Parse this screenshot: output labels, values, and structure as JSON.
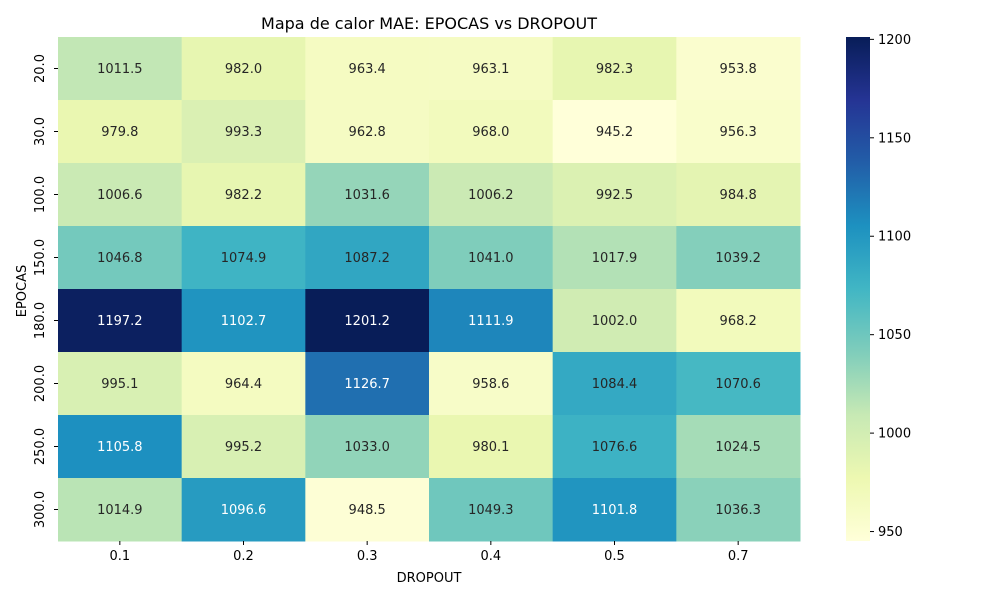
{
  "chart_data": {
    "type": "heatmap",
    "title": "Mapa de calor MAE: EPOCAS vs DROPOUT",
    "xlabel": "DROPOUT",
    "ylabel": "EPOCAS",
    "x_categories": [
      "0.1",
      "0.2",
      "0.3",
      "0.4",
      "0.5",
      "0.7"
    ],
    "y_categories": [
      "20.0",
      "30.0",
      "100.0",
      "150.0",
      "180.0",
      "200.0",
      "250.0",
      "300.0"
    ],
    "values": [
      [
        1011.5,
        982.0,
        963.4,
        963.1,
        982.3,
        953.8
      ],
      [
        979.8,
        993.3,
        962.8,
        968.0,
        945.2,
        956.3
      ],
      [
        1006.6,
        982.2,
        1031.6,
        1006.2,
        992.5,
        984.8
      ],
      [
        1046.8,
        1074.9,
        1087.2,
        1041.0,
        1017.9,
        1039.2
      ],
      [
        1197.2,
        1102.7,
        1201.2,
        1111.9,
        1002.0,
        968.2
      ],
      [
        995.1,
        964.4,
        1126.7,
        958.6,
        1084.4,
        1070.6
      ],
      [
        1105.8,
        995.2,
        1033.0,
        980.1,
        1076.6,
        1024.5
      ],
      [
        1014.9,
        1096.6,
        948.5,
        1049.3,
        1101.8,
        1036.3
      ]
    ],
    "colormap": "YlGnBu",
    "vmin": 945.2,
    "vmax": 1201.2,
    "colorbar_ticks": [
      "950",
      "1000",
      "1050",
      "1100",
      "1150",
      "1200"
    ],
    "colors": {
      "YlGnBu": [
        "#ffffd9",
        "#edf8b1",
        "#c7e9b4",
        "#7fcdbb",
        "#41b6c4",
        "#1d91c0",
        "#225ea8",
        "#253494",
        "#081d58"
      ]
    }
  }
}
